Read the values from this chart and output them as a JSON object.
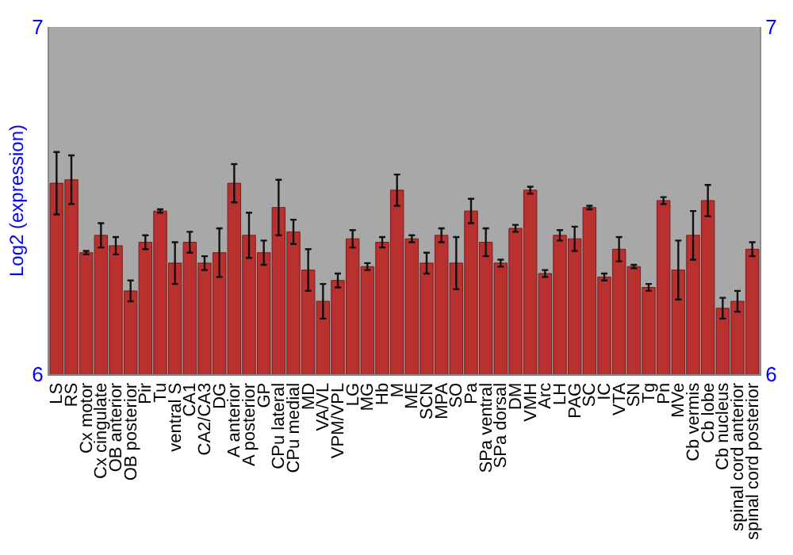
{
  "chart_data": {
    "type": "bar",
    "ylabel": "Log2 (expression)",
    "categories": [
      "LS",
      "RS",
      "Cx motor",
      "Cx cingulate",
      "OB anterior",
      "OB posterior",
      "Pir",
      "Tu",
      "ventral S",
      "CA1",
      "CA2/CA3",
      "DG",
      "A anterior",
      "A posterior",
      "GP",
      "CPu lateral",
      "CPu medial",
      "MD",
      "VA/VL",
      "VPM/VPL",
      "LG",
      "MG",
      "Hb",
      "M",
      "ME",
      "SCN",
      "MPA",
      "SO",
      "Pa",
      "SPa ventral",
      "SPa dorsal",
      "DM",
      "VMH",
      "Arc",
      "LH",
      "PAG",
      "SC",
      "IC",
      "VTA",
      "SN",
      "Tg",
      "Pn",
      "MVe",
      "Cb vermis",
      "Cb lobe",
      "Cb nucleus",
      "spinal cord anterior",
      "spinal cord posterior"
    ],
    "series": [
      {
        "color": "#b8312f",
        "values": [
          6.55,
          6.56,
          6.35,
          6.4,
          6.37,
          6.24,
          6.38,
          6.47,
          6.32,
          6.38,
          6.32,
          6.35,
          6.55,
          6.4,
          6.35,
          6.48,
          6.41,
          6.3,
          6.21,
          6.27,
          6.39,
          6.31,
          6.38,
          6.53,
          6.39,
          6.32,
          6.4,
          6.32,
          6.47,
          6.38,
          6.32,
          6.42,
          6.53,
          6.29,
          6.4,
          6.39,
          6.48,
          6.28,
          6.36,
          6.31,
          6.25,
          6.5,
          6.3,
          6.4,
          6.5,
          6.19,
          6.21,
          6.36
        ],
        "errors": [
          0.09,
          0.07,
          0.005,
          0.035,
          0.025,
          0.03,
          0.02,
          0.005,
          0.06,
          0.03,
          0.02,
          0.07,
          0.055,
          0.065,
          0.035,
          0.08,
          0.035,
          0.06,
          0.05,
          0.02,
          0.025,
          0.01,
          0.015,
          0.045,
          0.01,
          0.03,
          0.02,
          0.075,
          0.035,
          0.04,
          0.01,
          0.01,
          0.01,
          0.01,
          0.015,
          0.035,
          0.005,
          0.01,
          0.035,
          0.005,
          0.01,
          0.01,
          0.085,
          0.07,
          0.045,
          0.03,
          0.03,
          0.02
        ]
      }
    ],
    "ylim": [
      6,
      7
    ],
    "yticks": [
      6,
      7
    ],
    "y2lim": [
      6,
      7
    ],
    "y2ticks": [
      6,
      7
    ],
    "grid": false
  }
}
